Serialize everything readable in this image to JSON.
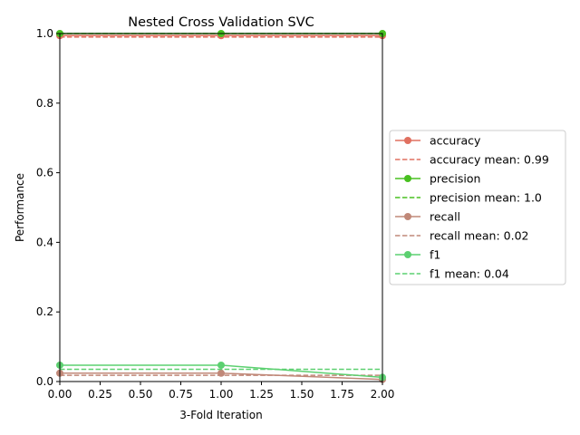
{
  "chart_data": {
    "type": "line",
    "title": "Nested Cross Validation SVC",
    "xlabel": "3-Fold Iteration",
    "ylabel": "Performance",
    "xlim": [
      0,
      2
    ],
    "ylim": [
      0,
      1
    ],
    "x_ticks": [
      "0.00",
      "0.25",
      "0.50",
      "0.75",
      "1.00",
      "1.25",
      "1.50",
      "1.75",
      "2.00"
    ],
    "y_ticks": [
      "0.0",
      "0.2",
      "0.4",
      "0.6",
      "0.8",
      "1.0"
    ],
    "grid": false,
    "legend_position": "right, outside plot",
    "x": [
      0,
      1,
      2
    ],
    "series": [
      {
        "name": "accuracy",
        "values": [
          0.994,
          0.994,
          0.994
        ],
        "color": "#e07060",
        "mean": 0.99,
        "mean_label": "accuracy mean: 0.99"
      },
      {
        "name": "precision",
        "values": [
          1.0,
          1.0,
          1.0
        ],
        "color": "#48c020",
        "mean": 1.0,
        "mean_label": "precision mean: 1.0"
      },
      {
        "name": "recall",
        "values": [
          0.024,
          0.024,
          0.006
        ],
        "color": "#c08878",
        "mean": 0.018,
        "mean_label": "recall mean: 0.02"
      },
      {
        "name": "f1",
        "values": [
          0.047,
          0.047,
          0.012
        ],
        "color": "#5cd070",
        "mean": 0.035,
        "mean_label": "f1 mean: 0.04"
      }
    ]
  }
}
